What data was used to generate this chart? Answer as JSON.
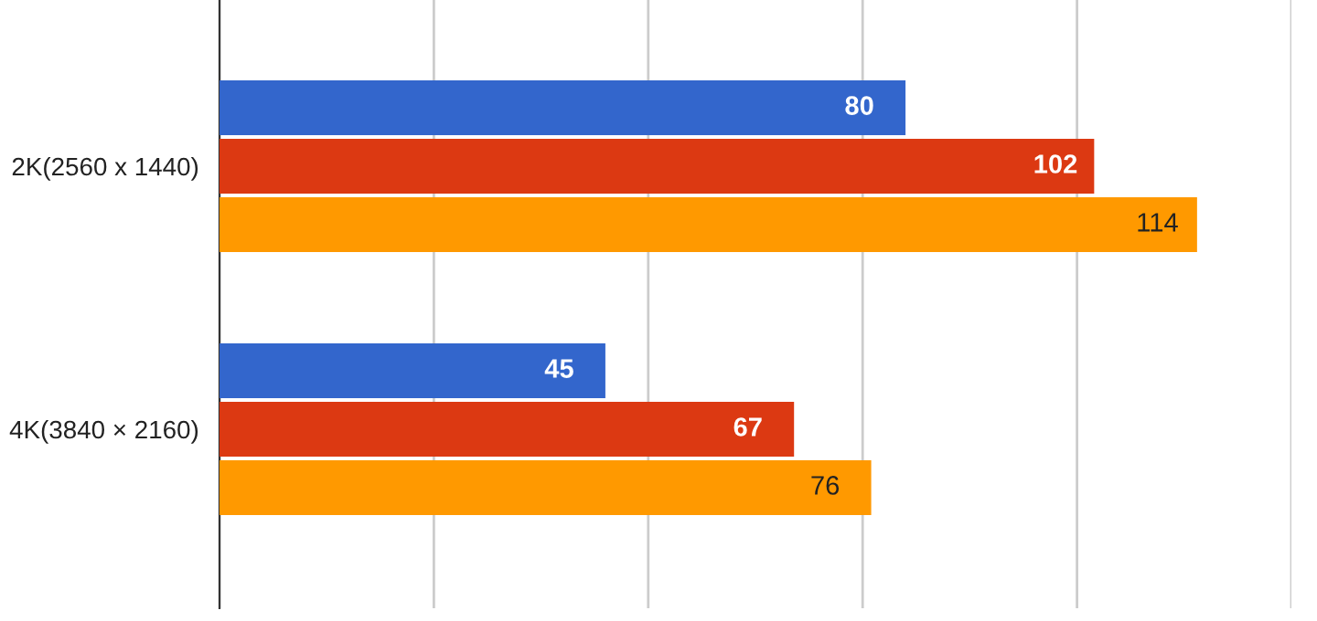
{
  "chart_data": {
    "type": "bar",
    "orientation": "horizontal",
    "categories": [
      "2K(2560 x 1440)",
      "4K(3840 × 2160)"
    ],
    "series": [
      {
        "color": "#3366cc",
        "values": [
          80,
          45
        ]
      },
      {
        "color": "#dc3912",
        "values": [
          102,
          67
        ]
      },
      {
        "color": "#ff9900",
        "values": [
          114,
          76
        ]
      }
    ],
    "xlim": [
      0,
      125
    ],
    "xticks": [
      {
        "value": 0,
        "label": null
      },
      {
        "value": 25,
        "label": null
      },
      {
        "value": 50,
        "label": null
      },
      {
        "value": 75,
        "label": null
      },
      {
        "value": 100,
        "label": null
      },
      {
        "value": 125,
        "label": null
      }
    ],
    "tick_labels": "y",
    "grid": "x",
    "data_labels": true,
    "legend": false
  }
}
